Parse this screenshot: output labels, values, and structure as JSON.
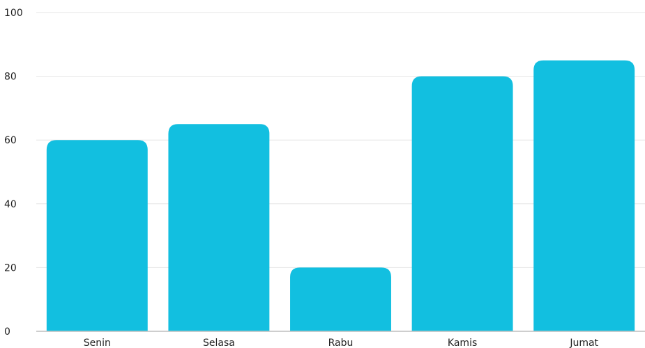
{
  "chart_data": {
    "type": "bar",
    "categories": [
      "Senin",
      "Selasa",
      "Rabu",
      "Kamis",
      "Jumat"
    ],
    "values": [
      60,
      65,
      20,
      80,
      85
    ],
    "title": "",
    "xlabel": "",
    "ylabel": "",
    "ylim": [
      0,
      100
    ],
    "yticks": [
      "0",
      "20",
      "40",
      "60",
      "80",
      "100"
    ],
    "grid": true,
    "bar_color": "#12BFE0",
    "grid_color": "#E6E6E6",
    "axis_color": "#BDBDBD"
  }
}
